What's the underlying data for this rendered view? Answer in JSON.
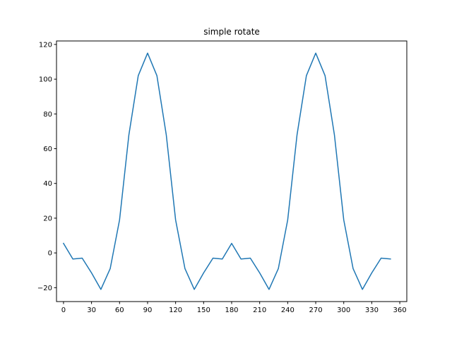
{
  "chart_data": {
    "type": "line",
    "title": "simple rotate",
    "xlabel": "",
    "ylabel": "",
    "xlim": [
      -7.5,
      367.5
    ],
    "ylim": [
      -28,
      122
    ],
    "x_ticks": [
      0,
      30,
      60,
      90,
      120,
      150,
      180,
      210,
      240,
      270,
      300,
      330,
      360
    ],
    "y_ticks": [
      -20,
      0,
      20,
      40,
      60,
      80,
      100,
      120
    ],
    "y_tick_labels": [
      "−20",
      "0",
      "20",
      "40",
      "60",
      "80",
      "100",
      "120"
    ],
    "grid": false,
    "series": [
      {
        "color": "#1f77b4",
        "x": [
          0,
          10,
          20,
          30,
          40,
          50,
          60,
          70,
          80,
          90,
          100,
          110,
          120,
          130,
          140,
          150,
          160,
          170,
          180,
          190,
          200,
          210,
          220,
          230,
          240,
          250,
          260,
          270,
          280,
          290,
          300,
          310,
          320,
          330,
          340,
          350
        ],
        "y": [
          5.5,
          -3.5,
          -3,
          -11.5,
          -21,
          -9,
          19,
          68,
          102,
          115,
          102,
          68,
          19,
          -9,
          -21,
          -11.5,
          -3,
          -3.5,
          5.5,
          -3.5,
          -3,
          -11.5,
          -21,
          -9,
          19,
          68,
          102,
          115,
          102,
          68,
          19,
          -9,
          -21,
          -11.5,
          -3,
          -3.5
        ]
      }
    ]
  }
}
